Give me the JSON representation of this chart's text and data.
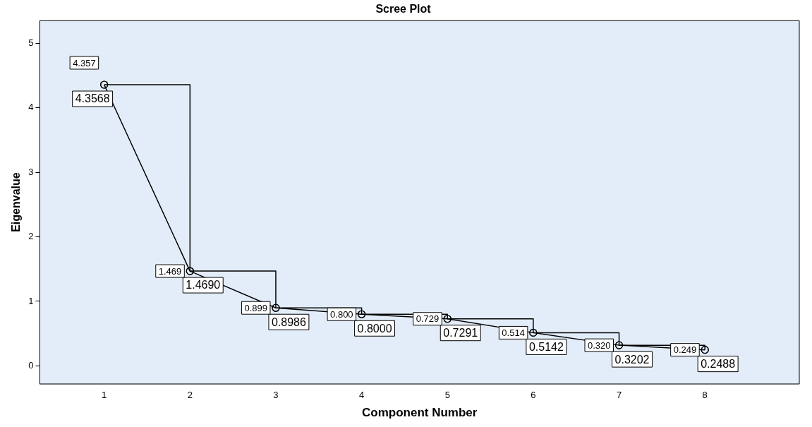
{
  "chart_data": {
    "type": "line",
    "title": "Scree Plot",
    "xlabel": "Component Number",
    "ylabel": "Eigenvalue",
    "x": [
      1,
      2,
      3,
      4,
      5,
      6,
      7,
      8
    ],
    "series": [
      {
        "type": "line",
        "color": "#000000",
        "values": [
          4.3568,
          1.469,
          0.8986,
          0.8,
          0.7291,
          0.5142,
          0.3202,
          0.2488
        ],
        "value_labels": [
          "4.3568",
          "1.4690",
          "0.8986",
          "0.8000",
          "0.7291",
          "0.5142",
          "0.3202",
          "0.2488"
        ]
      },
      {
        "type": "step",
        "color": "#000000",
        "values": [
          4.357,
          1.469,
          0.899,
          0.8,
          0.729,
          0.514,
          0.32,
          0.249
        ],
        "value_labels": [
          "4.357",
          "1.469",
          "0.899",
          "0.800",
          "0.729",
          "0.514",
          "0.320",
          "0.249"
        ]
      }
    ],
    "xlim": [
      0.25,
      9.1
    ],
    "xticks": [
      1,
      2,
      3,
      4,
      5,
      6,
      7,
      8
    ],
    "ylim": [
      -0.28,
      5.35
    ],
    "yticks": [
      0,
      1,
      2,
      3,
      4,
      5
    ],
    "grid": false,
    "legend": false,
    "marker": "circle",
    "line_style": "solid"
  }
}
